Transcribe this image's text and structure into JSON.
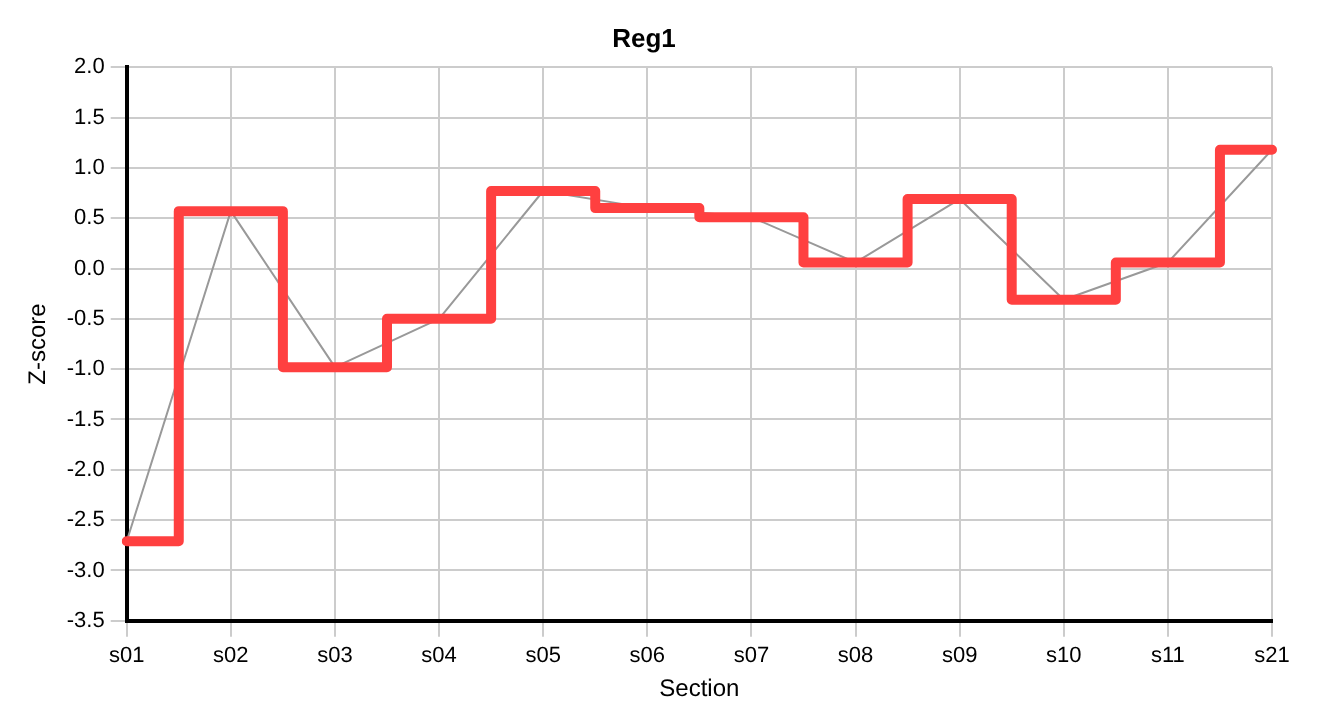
{
  "chart_data": {
    "type": "step",
    "title": "Reg1",
    "xlabel": "Section",
    "ylabel": "Z-score",
    "categories": [
      "s01",
      "s02",
      "s03",
      "s04",
      "s05",
      "s06",
      "s07",
      "s08",
      "s09",
      "s10",
      "s11",
      "s21"
    ],
    "series": [
      {
        "color": "#ff4040",
        "values": [
          -2.71,
          0.57,
          -0.98,
          -0.5,
          0.77,
          0.6,
          0.51,
          0.06,
          0.69,
          -0.31,
          0.06,
          1.18
        ]
      },
      {
        "type": "line",
        "color": "#999999",
        "values": [
          -2.71,
          0.57,
          -0.98,
          -0.5,
          0.77,
          0.6,
          0.51,
          0.06,
          0.69,
          -0.31,
          0.06,
          1.18
        ]
      }
    ],
    "ylim": [
      -3.5,
      2.0
    ],
    "yticks": [
      {
        "value": -3.5,
        "label": "-3.5"
      },
      {
        "value": -3,
        "label": "-3.0"
      },
      {
        "value": -2.5,
        "label": "-2.5"
      },
      {
        "value": -2,
        "label": "-2.0"
      },
      {
        "value": -1.5,
        "label": "-1.5"
      },
      {
        "value": -1,
        "label": "-1.0"
      },
      {
        "value": -0.5,
        "label": "-0.5"
      },
      {
        "value": 0,
        "label": "0.0"
      },
      {
        "value": 0.5,
        "label": "0.5"
      },
      {
        "value": 1,
        "label": "1.0"
      },
      {
        "value": 1.5,
        "label": "1.5"
      },
      {
        "value": 2,
        "label": "2.0"
      }
    ],
    "grid": true,
    "legend": false,
    "marker": "none",
    "line_style": "solid"
  }
}
